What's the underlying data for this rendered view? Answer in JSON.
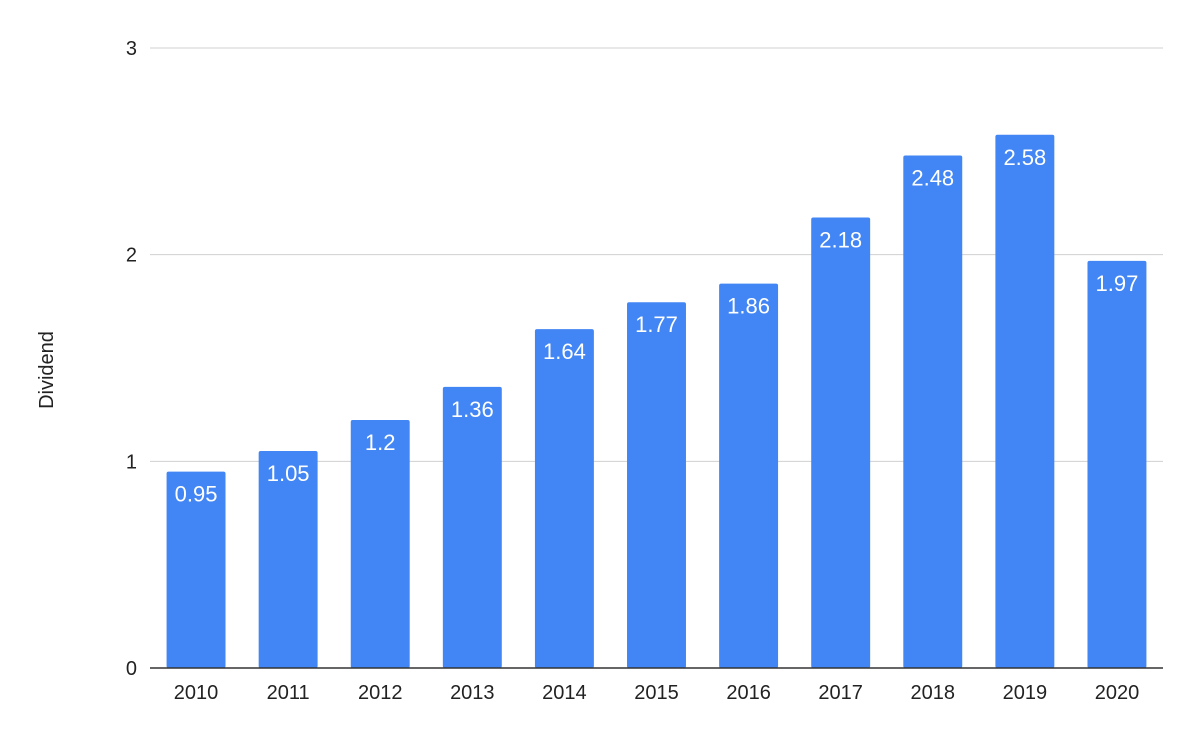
{
  "chart_data": {
    "type": "bar",
    "title": "",
    "xlabel": "",
    "ylabel": "Dividend",
    "ylim": [
      0,
      3
    ],
    "yticks": [
      0,
      1,
      2,
      3
    ],
    "grid": true,
    "legend": "none",
    "colors": {
      "bar": "#4285f4",
      "grid": "#d0d0d0",
      "baseline": "#333333",
      "text": "#222222",
      "data_label": "#ffffff"
    },
    "categories": [
      "2010",
      "2011",
      "2012",
      "2013",
      "2014",
      "2015",
      "2016",
      "2017",
      "2018",
      "2019",
      "2020"
    ],
    "values": [
      0.95,
      1.05,
      1.2,
      1.36,
      1.64,
      1.77,
      1.86,
      2.18,
      2.48,
      2.58,
      1.97
    ],
    "data_labels": [
      "0.95",
      "1.05",
      "1.2",
      "1.36",
      "1.64",
      "1.77",
      "1.86",
      "2.18",
      "2.48",
      "2.58",
      "1.97"
    ]
  }
}
